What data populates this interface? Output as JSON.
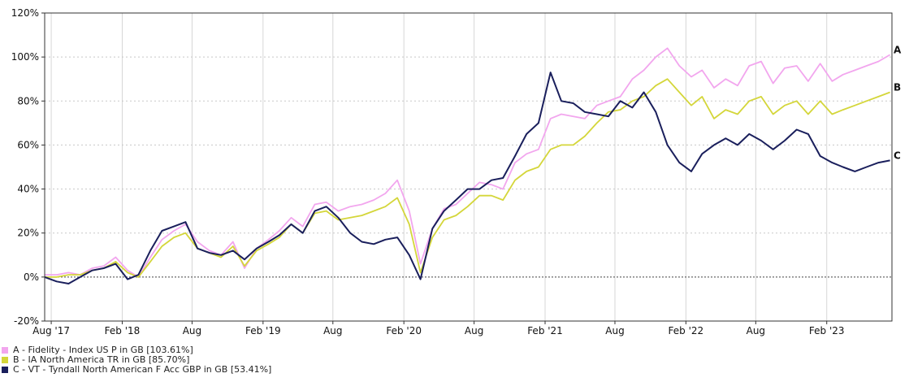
{
  "chart_data": {
    "type": "line",
    "title": "",
    "xlabel": "",
    "ylabel": "",
    "y_ticks": [
      -20,
      0,
      20,
      40,
      60,
      80,
      100,
      120
    ],
    "y_tick_labels": [
      "-20%",
      "0%",
      "20%",
      "40%",
      "60%",
      "80%",
      "100%",
      "120%"
    ],
    "ylim": [
      -20,
      120
    ],
    "xlim": [
      "2017-07-15",
      "2023-07-20"
    ],
    "x_ticks": [
      "2017-08-01",
      "2018-02-01",
      "2018-08-01",
      "2019-02-01",
      "2019-08-01",
      "2020-02-01",
      "2020-08-01",
      "2021-02-01",
      "2021-08-01",
      "2022-02-01",
      "2022-08-01",
      "2023-02-01"
    ],
    "x_tick_labels": [
      "Aug '17",
      "Feb '18",
      "Aug",
      "Feb '19",
      "Aug",
      "Feb '20",
      "Aug",
      "Feb '21",
      "Aug",
      "Feb '22",
      "Aug",
      "Feb '23"
    ],
    "vertical_grid": true,
    "horizontal_grid": "dotted",
    "zero_line": "dotted",
    "legend_position": "bottom-left",
    "series": [
      {
        "name": "A - Fidelity - Index US P in GB [103.61%]",
        "end_label": "A",
        "color": "#f2a6ee",
        "x": [
          "2017-07-15",
          "2017-08-15",
          "2017-09-15",
          "2017-10-15",
          "2017-11-15",
          "2017-12-15",
          "2018-01-15",
          "2018-02-15",
          "2018-03-15",
          "2018-04-15",
          "2018-05-15",
          "2018-06-15",
          "2018-07-15",
          "2018-08-15",
          "2018-09-15",
          "2018-10-15",
          "2018-11-15",
          "2018-12-15",
          "2019-01-15",
          "2019-02-15",
          "2019-03-15",
          "2019-04-15",
          "2019-05-15",
          "2019-06-15",
          "2019-07-15",
          "2019-08-15",
          "2019-09-15",
          "2019-10-15",
          "2019-11-15",
          "2019-12-15",
          "2020-01-15",
          "2020-02-15",
          "2020-03-15",
          "2020-04-15",
          "2020-05-15",
          "2020-06-15",
          "2020-07-15",
          "2020-08-15",
          "2020-09-15",
          "2020-10-15",
          "2020-11-15",
          "2020-12-15",
          "2021-01-15",
          "2021-02-15",
          "2021-03-15",
          "2021-04-15",
          "2021-05-15",
          "2021-06-15",
          "2021-07-15",
          "2021-08-15",
          "2021-09-15",
          "2021-10-15",
          "2021-11-15",
          "2021-12-15",
          "2022-01-15",
          "2022-02-15",
          "2022-03-15",
          "2022-04-15",
          "2022-05-15",
          "2022-06-15",
          "2022-07-15",
          "2022-08-15",
          "2022-09-15",
          "2022-10-15",
          "2022-11-15",
          "2022-12-15",
          "2023-01-15",
          "2023-02-15",
          "2023-03-15",
          "2023-04-15",
          "2023-05-15",
          "2023-06-15",
          "2023-07-15"
        ],
        "values": [
          1,
          1,
          2,
          1,
          4,
          5,
          9,
          3,
          0,
          9,
          17,
          21,
          24,
          16,
          12,
          10,
          16,
          4,
          13,
          17,
          21,
          27,
          23,
          33,
          34,
          30,
          32,
          33,
          35,
          38,
          44,
          30,
          6,
          22,
          31,
          33,
          38,
          43,
          42,
          40,
          52,
          56,
          58,
          72,
          74,
          73,
          72,
          78,
          80,
          82,
          90,
          94,
          100,
          104,
          96,
          91,
          94,
          86,
          90,
          87,
          96,
          98,
          88,
          95,
          96,
          89,
          97,
          89,
          92,
          94,
          96,
          98,
          101
        ]
      },
      {
        "name": "B - IA North America TR in GB [85.70%]",
        "end_label": "B",
        "color": "#d4d63a",
        "x": [
          "2017-07-15",
          "2017-08-15",
          "2017-09-15",
          "2017-10-15",
          "2017-11-15",
          "2017-12-15",
          "2018-01-15",
          "2018-02-15",
          "2018-03-15",
          "2018-04-15",
          "2018-05-15",
          "2018-06-15",
          "2018-07-15",
          "2018-08-15",
          "2018-09-15",
          "2018-10-15",
          "2018-11-15",
          "2018-12-15",
          "2019-01-15",
          "2019-02-15",
          "2019-03-15",
          "2019-04-15",
          "2019-05-15",
          "2019-06-15",
          "2019-07-15",
          "2019-08-15",
          "2019-09-15",
          "2019-10-15",
          "2019-11-15",
          "2019-12-15",
          "2020-01-15",
          "2020-02-15",
          "2020-03-15",
          "2020-04-15",
          "2020-05-15",
          "2020-06-15",
          "2020-07-15",
          "2020-08-15",
          "2020-09-15",
          "2020-10-15",
          "2020-11-15",
          "2020-12-15",
          "2021-01-15",
          "2021-02-15",
          "2021-03-15",
          "2021-04-15",
          "2021-05-15",
          "2021-06-15",
          "2021-07-15",
          "2021-08-15",
          "2021-09-15",
          "2021-10-15",
          "2021-11-15",
          "2021-12-15",
          "2022-01-15",
          "2022-02-15",
          "2022-03-15",
          "2022-04-15",
          "2022-05-15",
          "2022-06-15",
          "2022-07-15",
          "2022-08-15",
          "2022-09-15",
          "2022-10-15",
          "2022-11-15",
          "2022-12-15",
          "2023-01-15",
          "2023-02-15",
          "2023-03-15",
          "2023-04-15",
          "2023-05-15",
          "2023-06-15",
          "2023-07-15"
        ],
        "values": [
          0,
          0,
          1,
          1,
          3,
          4,
          7,
          2,
          0,
          7,
          14,
          18,
          20,
          13,
          11,
          9,
          14,
          5,
          12,
          15,
          18,
          24,
          20,
          29,
          30,
          26,
          27,
          28,
          30,
          32,
          36,
          24,
          2,
          18,
          26,
          28,
          32,
          37,
          37,
          35,
          44,
          48,
          50,
          58,
          60,
          60,
          64,
          70,
          75,
          76,
          80,
          82,
          87,
          90,
          84,
          78,
          82,
          72,
          76,
          74,
          80,
          82,
          74,
          78,
          80,
          74,
          80,
          74,
          76,
          78,
          80,
          82,
          84
        ]
      },
      {
        "name": "C - VT - Tyndall North American F Acc GBP in GB [53.41%]",
        "end_label": "C",
        "color": "#1a1f5c",
        "x": [
          "2017-07-15",
          "2017-08-15",
          "2017-09-15",
          "2017-10-15",
          "2017-11-15",
          "2017-12-15",
          "2018-01-15",
          "2018-02-15",
          "2018-03-15",
          "2018-04-15",
          "2018-05-15",
          "2018-06-15",
          "2018-07-15",
          "2018-08-15",
          "2018-09-15",
          "2018-10-15",
          "2018-11-15",
          "2018-12-15",
          "2019-01-15",
          "2019-02-15",
          "2019-03-15",
          "2019-04-15",
          "2019-05-15",
          "2019-06-15",
          "2019-07-15",
          "2019-08-15",
          "2019-09-15",
          "2019-10-15",
          "2019-11-15",
          "2019-12-15",
          "2020-01-15",
          "2020-02-15",
          "2020-03-15",
          "2020-04-15",
          "2020-05-15",
          "2020-06-15",
          "2020-07-15",
          "2020-08-15",
          "2020-09-15",
          "2020-10-15",
          "2020-11-15",
          "2020-12-15",
          "2021-01-15",
          "2021-02-15",
          "2021-03-15",
          "2021-04-15",
          "2021-05-15",
          "2021-06-15",
          "2021-07-15",
          "2021-08-15",
          "2021-09-15",
          "2021-10-15",
          "2021-11-15",
          "2021-12-15",
          "2022-01-15",
          "2022-02-15",
          "2022-03-15",
          "2022-04-15",
          "2022-05-15",
          "2022-06-15",
          "2022-07-15",
          "2022-08-15",
          "2022-09-15",
          "2022-10-15",
          "2022-11-15",
          "2022-12-15",
          "2023-01-15",
          "2023-02-15",
          "2023-03-15",
          "2023-04-15",
          "2023-05-15",
          "2023-06-15",
          "2023-07-15"
        ],
        "values": [
          0,
          -2,
          -3,
          0,
          3,
          4,
          6,
          -1,
          1,
          12,
          21,
          23,
          25,
          13,
          11,
          10,
          12,
          8,
          13,
          16,
          19,
          24,
          20,
          30,
          32,
          27,
          20,
          16,
          15,
          17,
          18,
          10,
          -1,
          22,
          30,
          35,
          40,
          40,
          44,
          45,
          55,
          65,
          70,
          93,
          80,
          79,
          75,
          74,
          73,
          80,
          77,
          84,
          75,
          60,
          52,
          48,
          56,
          60,
          63,
          60,
          65,
          62,
          58,
          62,
          67,
          65,
          55,
          52,
          50,
          48,
          50,
          52,
          53
        ]
      }
    ]
  }
}
